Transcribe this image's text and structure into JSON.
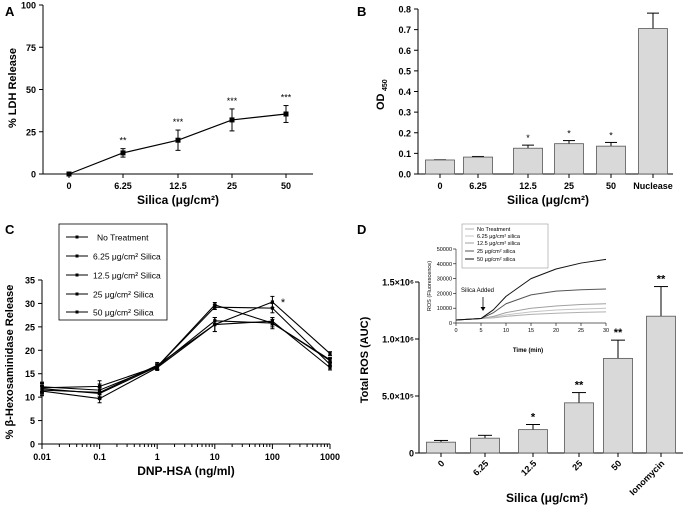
{
  "chart_data": [
    {
      "panel": "A",
      "type": "line",
      "title": "",
      "xlabel": "Silica (μg/cm²)",
      "ylabel": "% LDH Release",
      "categories": [
        "0",
        "6.25",
        "12.5",
        "25",
        "50"
      ],
      "values": [
        0,
        12.5,
        20,
        32,
        35.5
      ],
      "errors": [
        0.5,
        2.5,
        6,
        6.5,
        5
      ],
      "significance": [
        "",
        "**",
        "***",
        "***",
        "***"
      ],
      "ylim": [
        0,
        100
      ],
      "yticks": [
        {
          "value": 0,
          "label": "0"
        },
        {
          "value": 25,
          "label": "25"
        },
        {
          "value": 50,
          "label": "50"
        },
        {
          "value": 75,
          "label": "75"
        },
        {
          "value": 100,
          "label": "100"
        }
      ]
    },
    {
      "panel": "B",
      "type": "bar",
      "xlabel": "Silica (μg/cm²)",
      "ylabel": "OD",
      "ylabel_sub": "450",
      "categories": [
        "0",
        "6.25",
        "12.5",
        "25",
        "50",
        "Nuclease"
      ],
      "values": [
        0.068,
        0.082,
        0.125,
        0.147,
        0.135,
        0.705
      ],
      "errors": [
        0.001,
        0.003,
        0.015,
        0.015,
        0.018,
        0.075
      ],
      "significance": [
        "",
        "",
        "*",
        "*",
        "*",
        ""
      ],
      "ylim": [
        0,
        0.8
      ],
      "yticks": [
        {
          "value": 0,
          "label": "0.0"
        },
        {
          "value": 0.1,
          "label": "0.1"
        },
        {
          "value": 0.2,
          "label": "0.2"
        },
        {
          "value": 0.3,
          "label": "0.3"
        },
        {
          "value": 0.4,
          "label": "0.4"
        },
        {
          "value": 0.5,
          "label": "0.5"
        },
        {
          "value": 0.6,
          "label": "0.6"
        },
        {
          "value": 0.7,
          "label": "0.7"
        },
        {
          "value": 0.8,
          "label": "0.8"
        }
      ],
      "bar_color": "#d9d9d9"
    },
    {
      "panel": "C",
      "type": "line",
      "xscale": "log",
      "xlabel": "DNP-HSA (ng/ml)",
      "ylabel": "% β-Hexosaminidase Release",
      "x": [
        0.01,
        0.1,
        1,
        10,
        100,
        1000
      ],
      "xtick_labels": [
        "0.01",
        "0.1",
        "1",
        "10",
        "100",
        "1000"
      ],
      "ylim": [
        0,
        35
      ],
      "yticks": [
        {
          "value": 0,
          "label": "0"
        },
        {
          "value": 5,
          "label": "5"
        },
        {
          "value": 10,
          "label": "10"
        },
        {
          "value": 15,
          "label": "15"
        },
        {
          "value": 20,
          "label": "20"
        },
        {
          "value": 25,
          "label": "25"
        },
        {
          "value": 30,
          "label": "30"
        },
        {
          "value": 35,
          "label": "35"
        }
      ],
      "legend_position": "top-left",
      "annotation": "*",
      "series": [
        {
          "name": "No Treatment",
          "values": [
            12.0,
            12.3,
            16.5,
            29.7,
            25.8,
            17.8
          ],
          "errors": [
            1.0,
            1.2,
            0.6,
            0.5,
            0.8,
            0.5
          ]
        },
        {
          "name": "6.25 μg/cm² Silica",
          "values": [
            11.5,
            11.0,
            16.8,
            25.5,
            26.2,
            16.3
          ],
          "errors": [
            1.0,
            1.2,
            0.6,
            1.5,
            0.8,
            0.5
          ]
        },
        {
          "name": "12.5 μg/cm² Silica",
          "values": [
            12.2,
            11.5,
            16.5,
            29.2,
            29.0,
            17.0
          ],
          "errors": [
            1.0,
            1.3,
            0.6,
            0.5,
            1.0,
            0.5
          ]
        },
        {
          "name": "25 μg/cm² Silica",
          "values": [
            11.3,
            9.7,
            16.3,
            25.5,
            30.3,
            19.3
          ],
          "errors": [
            1.0,
            0.9,
            0.6,
            1.5,
            1.2,
            0.4
          ]
        },
        {
          "name": "50 μg/cm² Silica",
          "values": [
            11.8,
            10.8,
            16.5,
            26.3,
            25.8,
            18.0
          ],
          "errors": [
            1.0,
            1.2,
            0.6,
            0.7,
            1.2,
            0.5
          ]
        }
      ]
    },
    {
      "panel": "D",
      "type": "bar",
      "xlabel": "Silica (μg/cm²)",
      "ylabel": "Total  ROS  (AUC)",
      "categories": [
        "0",
        "6.25",
        "12.5",
        "25",
        "50",
        "Ionomycin"
      ],
      "values": [
        95000,
        130000,
        205000,
        440000,
        830000,
        1200000
      ],
      "errors": [
        15000,
        25000,
        45000,
        90000,
        160000,
        260000
      ],
      "significance": [
        "",
        "",
        "*",
        "**",
        "**",
        "**"
      ],
      "ylim": [
        0,
        1500000
      ],
      "yticks": [
        {
          "value": 0,
          "label": "0"
        },
        {
          "value": 500000,
          "label": "5.0×10⁵"
        },
        {
          "value": 1000000,
          "label": "1.0×10⁶"
        },
        {
          "value": 1500000,
          "label": "1.5×10⁶"
        }
      ],
      "bar_color": "#d9d9d9",
      "inset": {
        "type": "line",
        "xlabel": "Time (min)",
        "ylabel": "ROS (Fluorescence)",
        "annotation": "Silica Added",
        "annotation_x": 5,
        "x": [
          0,
          5,
          7.5,
          10,
          15,
          20,
          25,
          30
        ],
        "xlim": [
          0,
          30
        ],
        "ylim": [
          0,
          50000
        ],
        "xticks": [
          {
            "value": 0,
            "label": "0"
          },
          {
            "value": 5,
            "label": "5"
          },
          {
            "value": 10,
            "label": "10"
          },
          {
            "value": 15,
            "label": "15"
          },
          {
            "value": 20,
            "label": "20"
          },
          {
            "value": 25,
            "label": "25"
          },
          {
            "value": 30,
            "label": "30"
          }
        ],
        "yticks": [
          {
            "value": 0,
            "label": "0"
          },
          {
            "value": 10000,
            "label": "10000"
          },
          {
            "value": 20000,
            "label": "20000"
          },
          {
            "value": 30000,
            "label": "30000"
          },
          {
            "value": 40000,
            "label": "40000"
          },
          {
            "value": 50000,
            "label": "50000"
          }
        ],
        "series": [
          {
            "name": "No Treatment",
            "color": "#b0b0b0",
            "values": [
              2000,
              3000,
              3500,
              4500,
              5800,
              6600,
              7200,
              7500
            ]
          },
          {
            "name": "6.25 μg/cm² silica",
            "color": "#c4c4c4",
            "values": [
              2000,
              3000,
              4000,
              5500,
              7500,
              8800,
              9500,
              10000
            ]
          },
          {
            "name": "12.5 μg/cm² silica",
            "color": "#a0a0a0",
            "values": [
              2000,
              3000,
              4500,
              7000,
              10000,
              11500,
              12500,
              13000
            ]
          },
          {
            "name": "25 μg/cm² silica",
            "color": "#555555",
            "values": [
              2000,
              3000,
              7000,
              13000,
              19000,
              21500,
              22500,
              23000
            ]
          },
          {
            "name": "50 μg/cm² silica",
            "color": "#111111",
            "values": [
              2000,
              3000,
              9000,
              18000,
              30000,
              36500,
              40500,
              43000
            ]
          }
        ]
      }
    }
  ],
  "panel_labels": [
    "A",
    "B",
    "C",
    "D"
  ]
}
